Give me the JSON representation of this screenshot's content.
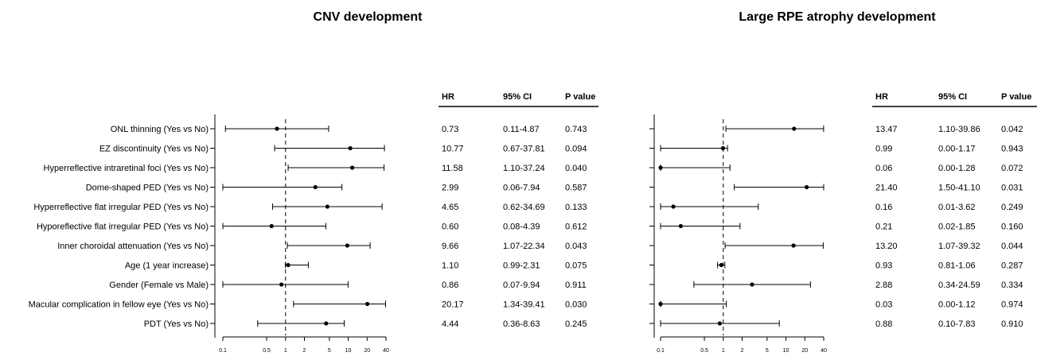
{
  "chart_data": {
    "type": "forest",
    "x_scale": "log",
    "xlim": [
      0.1,
      40
    ],
    "reference_line": 1,
    "tick_labels": [
      "0.1",
      "0.5",
      "1",
      "2",
      "5",
      "10",
      "20",
      "40"
    ],
    "tick_values": [
      0.1,
      0.5,
      1,
      2,
      5,
      10,
      20,
      40
    ],
    "table_headers": [
      "HR",
      "95% CI",
      "P value"
    ],
    "variables": [
      "ONL thinning (Yes vs No)",
      "EZ discontinuity (Yes vs No)",
      "Hyperreflective intraretinal foci (Yes vs No)",
      "Dome-shaped PED (Yes vs No)",
      "Hyperreflective flat irregular PED (Yes vs No)",
      "Hyporeflective flat irregular PED (Yes vs No)",
      "Inner choroidal attenuation (Yes vs No)",
      "Age (1 year increase)",
      "Gender (Female vs Male)",
      "Macular complication in fellow eye (Yes vs No)",
      "PDT (Yes vs No)"
    ],
    "panels": [
      {
        "title": "CNV development",
        "rows": [
          {
            "hr": 0.73,
            "lo": 0.11,
            "hi": 4.87,
            "hr_text": "0.73",
            "ci_text": "0.11-4.87",
            "p_text": "0.743"
          },
          {
            "hr": 10.77,
            "lo": 0.67,
            "hi": 37.81,
            "hr_text": "10.77",
            "ci_text": "0.67-37.81",
            "p_text": "0.094"
          },
          {
            "hr": 11.58,
            "lo": 1.1,
            "hi": 37.24,
            "hr_text": "11.58",
            "ci_text": "1.10-37.24",
            "p_text": "0.040"
          },
          {
            "hr": 2.99,
            "lo": 0.06,
            "hi": 7.94,
            "hr_text": "2.99",
            "ci_text": "0.06-7.94",
            "p_text": "0.587"
          },
          {
            "hr": 4.65,
            "lo": 0.62,
            "hi": 34.69,
            "hr_text": "4.65",
            "ci_text": "0.62-34.69",
            "p_text": "0.133"
          },
          {
            "hr": 0.6,
            "lo": 0.08,
            "hi": 4.39,
            "hr_text": "0.60",
            "ci_text": "0.08-4.39",
            "p_text": "0.612"
          },
          {
            "hr": 9.66,
            "lo": 1.07,
            "hi": 22.34,
            "hr_text": "9.66",
            "ci_text": "1.07-22.34",
            "p_text": "0.043"
          },
          {
            "hr": 1.1,
            "lo": 0.99,
            "hi": 2.31,
            "hr_text": "1.10",
            "ci_text": "0.99-2.31",
            "p_text": "0.075"
          },
          {
            "hr": 0.86,
            "lo": 0.07,
            "hi": 9.94,
            "hr_text": "0.86",
            "ci_text": "0.07-9.94",
            "p_text": "0.911"
          },
          {
            "hr": 20.17,
            "lo": 1.34,
            "hi": 39.41,
            "hr_text": "20.17",
            "ci_text": "1.34-39.41",
            "p_text": "0.030"
          },
          {
            "hr": 4.44,
            "lo": 0.36,
            "hi": 8.63,
            "hr_text": "4.44",
            "ci_text": "0.36-8.63",
            "p_text": "0.245"
          }
        ]
      },
      {
        "title": "Large RPE atrophy development",
        "rows": [
          {
            "hr": 13.47,
            "lo": 1.1,
            "hi": 39.86,
            "hr_text": "13.47",
            "ci_text": "1.10-39.86",
            "p_text": "0.042"
          },
          {
            "hr": 0.99,
            "lo": 0.0,
            "hi": 1.17,
            "hr_text": "0.99",
            "ci_text": "0.00-1.17",
            "p_text": "0.943"
          },
          {
            "hr": 0.06,
            "lo": 0.0,
            "hi": 1.28,
            "hr_text": "0.06",
            "ci_text": "0.00-1.28",
            "p_text": "0.072"
          },
          {
            "hr": 21.4,
            "lo": 1.5,
            "hi": 41.1,
            "hr_text": "21.40",
            "ci_text": "1.50-41.10",
            "p_text": "0.031"
          },
          {
            "hr": 0.16,
            "lo": 0.01,
            "hi": 3.62,
            "hr_text": "0.16",
            "ci_text": "0.01-3.62",
            "p_text": "0.249"
          },
          {
            "hr": 0.21,
            "lo": 0.02,
            "hi": 1.85,
            "hr_text": "0.21",
            "ci_text": "0.02-1.85",
            "p_text": "0.160"
          },
          {
            "hr": 13.2,
            "lo": 1.07,
            "hi": 39.32,
            "hr_text": "13.20",
            "ci_text": "1.07-39.32",
            "p_text": "0.044"
          },
          {
            "hr": 0.93,
            "lo": 0.81,
            "hi": 1.06,
            "hr_text": "0.93",
            "ci_text": "0.81-1.06",
            "p_text": "0.287"
          },
          {
            "hr": 2.88,
            "lo": 0.34,
            "hi": 24.59,
            "hr_text": "2.88",
            "ci_text": "0.34-24.59",
            "p_text": "0.334"
          },
          {
            "hr": 0.03,
            "lo": 0.0,
            "hi": 1.12,
            "hr_text": "0.03",
            "ci_text": "0.00-1.12",
            "p_text": "0.974"
          },
          {
            "hr": 0.88,
            "lo": 0.1,
            "hi": 7.83,
            "hr_text": "0.88",
            "ci_text": "0.10-7.83",
            "p_text": "0.910"
          }
        ]
      }
    ]
  }
}
